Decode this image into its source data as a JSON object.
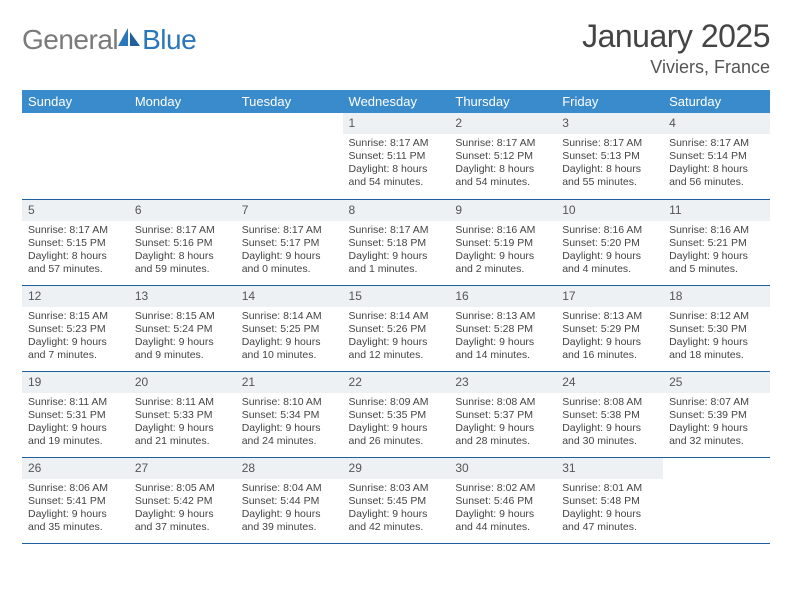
{
  "brand": {
    "part1": "General",
    "part2": "Blue"
  },
  "colors": {
    "header_bg": "#3a8bcc",
    "header_text": "#ffffff",
    "daynum_bg": "#eef1f3",
    "row_border": "#1f5f9a",
    "logo_gray": "#7a7a7a",
    "logo_blue": "#2a77bb"
  },
  "title": "January 2025",
  "location": "Viviers, France",
  "weekdays": [
    "Sunday",
    "Monday",
    "Tuesday",
    "Wednesday",
    "Thursday",
    "Friday",
    "Saturday"
  ],
  "layout": {
    "first_weekday_index": 3,
    "days_in_month": 31,
    "rows": 5
  },
  "days": {
    "1": {
      "sunrise": "8:17 AM",
      "sunset": "5:11 PM",
      "dl_h": 8,
      "dl_m": 54
    },
    "2": {
      "sunrise": "8:17 AM",
      "sunset": "5:12 PM",
      "dl_h": 8,
      "dl_m": 54
    },
    "3": {
      "sunrise": "8:17 AM",
      "sunset": "5:13 PM",
      "dl_h": 8,
      "dl_m": 55
    },
    "4": {
      "sunrise": "8:17 AM",
      "sunset": "5:14 PM",
      "dl_h": 8,
      "dl_m": 56
    },
    "5": {
      "sunrise": "8:17 AM",
      "sunset": "5:15 PM",
      "dl_h": 8,
      "dl_m": 57
    },
    "6": {
      "sunrise": "8:17 AM",
      "sunset": "5:16 PM",
      "dl_h": 8,
      "dl_m": 59
    },
    "7": {
      "sunrise": "8:17 AM",
      "sunset": "5:17 PM",
      "dl_h": 9,
      "dl_m": 0
    },
    "8": {
      "sunrise": "8:17 AM",
      "sunset": "5:18 PM",
      "dl_h": 9,
      "dl_m": 1
    },
    "9": {
      "sunrise": "8:16 AM",
      "sunset": "5:19 PM",
      "dl_h": 9,
      "dl_m": 2
    },
    "10": {
      "sunrise": "8:16 AM",
      "sunset": "5:20 PM",
      "dl_h": 9,
      "dl_m": 4
    },
    "11": {
      "sunrise": "8:16 AM",
      "sunset": "5:21 PM",
      "dl_h": 9,
      "dl_m": 5
    },
    "12": {
      "sunrise": "8:15 AM",
      "sunset": "5:23 PM",
      "dl_h": 9,
      "dl_m": 7
    },
    "13": {
      "sunrise": "8:15 AM",
      "sunset": "5:24 PM",
      "dl_h": 9,
      "dl_m": 9
    },
    "14": {
      "sunrise": "8:14 AM",
      "sunset": "5:25 PM",
      "dl_h": 9,
      "dl_m": 10
    },
    "15": {
      "sunrise": "8:14 AM",
      "sunset": "5:26 PM",
      "dl_h": 9,
      "dl_m": 12
    },
    "16": {
      "sunrise": "8:13 AM",
      "sunset": "5:28 PM",
      "dl_h": 9,
      "dl_m": 14
    },
    "17": {
      "sunrise": "8:13 AM",
      "sunset": "5:29 PM",
      "dl_h": 9,
      "dl_m": 16
    },
    "18": {
      "sunrise": "8:12 AM",
      "sunset": "5:30 PM",
      "dl_h": 9,
      "dl_m": 18
    },
    "19": {
      "sunrise": "8:11 AM",
      "sunset": "5:31 PM",
      "dl_h": 9,
      "dl_m": 19
    },
    "20": {
      "sunrise": "8:11 AM",
      "sunset": "5:33 PM",
      "dl_h": 9,
      "dl_m": 21
    },
    "21": {
      "sunrise": "8:10 AM",
      "sunset": "5:34 PM",
      "dl_h": 9,
      "dl_m": 24
    },
    "22": {
      "sunrise": "8:09 AM",
      "sunset": "5:35 PM",
      "dl_h": 9,
      "dl_m": 26
    },
    "23": {
      "sunrise": "8:08 AM",
      "sunset": "5:37 PM",
      "dl_h": 9,
      "dl_m": 28
    },
    "24": {
      "sunrise": "8:08 AM",
      "sunset": "5:38 PM",
      "dl_h": 9,
      "dl_m": 30
    },
    "25": {
      "sunrise": "8:07 AM",
      "sunset": "5:39 PM",
      "dl_h": 9,
      "dl_m": 32
    },
    "26": {
      "sunrise": "8:06 AM",
      "sunset": "5:41 PM",
      "dl_h": 9,
      "dl_m": 35
    },
    "27": {
      "sunrise": "8:05 AM",
      "sunset": "5:42 PM",
      "dl_h": 9,
      "dl_m": 37
    },
    "28": {
      "sunrise": "8:04 AM",
      "sunset": "5:44 PM",
      "dl_h": 9,
      "dl_m": 39
    },
    "29": {
      "sunrise": "8:03 AM",
      "sunset": "5:45 PM",
      "dl_h": 9,
      "dl_m": 42
    },
    "30": {
      "sunrise": "8:02 AM",
      "sunset": "5:46 PM",
      "dl_h": 9,
      "dl_m": 44
    },
    "31": {
      "sunrise": "8:01 AM",
      "sunset": "5:48 PM",
      "dl_h": 9,
      "dl_m": 47
    }
  },
  "labels": {
    "sunrise": "Sunrise:",
    "sunset": "Sunset:",
    "daylight": "Daylight:",
    "hours": "hours",
    "and": "and",
    "minutes": "minutes."
  }
}
